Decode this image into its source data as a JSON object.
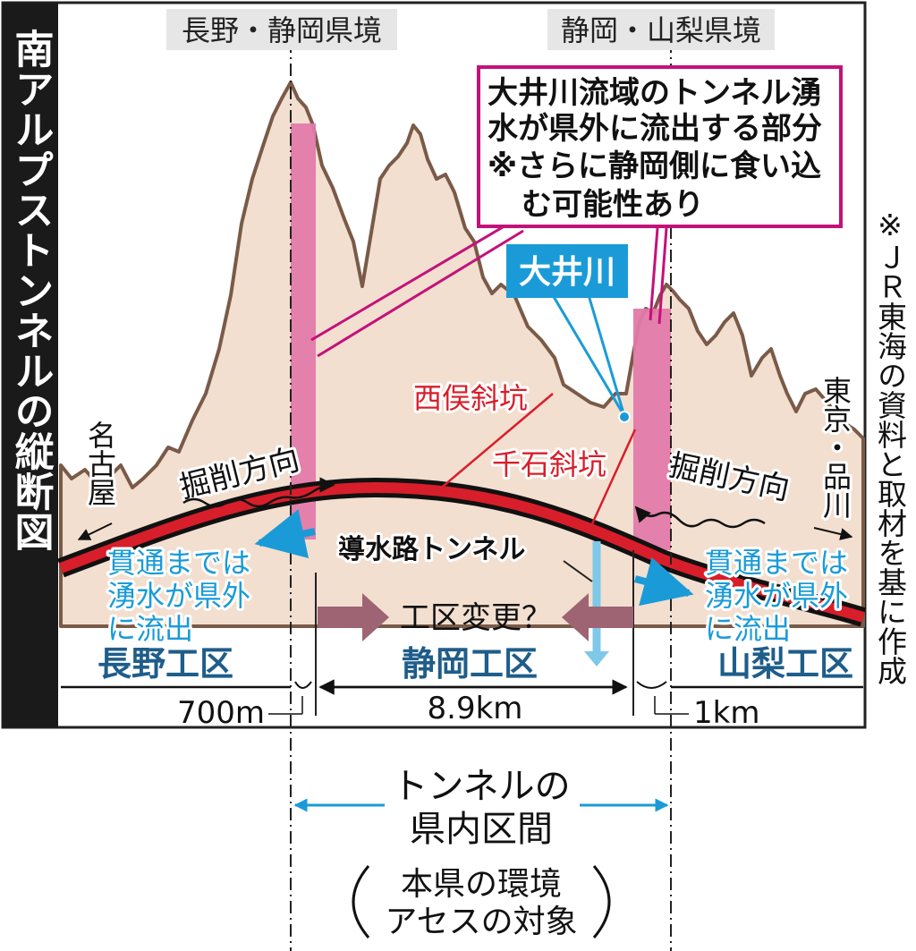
{
  "title": "南アルプストンネルの縦断図",
  "source_note": "※ＪＲ東海の資料と取材を基に作成",
  "border_labels": {
    "left": "長野・静岡県境",
    "right": "静岡・山梨県境"
  },
  "callout": {
    "line1": "大井川流域のトンネル湧",
    "line2": "水が県外に流出する部分",
    "line3": "※さらに静岡側に食い込",
    "line4": "む可能性あり"
  },
  "river_label": "大井川",
  "shafts": {
    "nishimata": "西俣斜坑",
    "senzoku": "千石斜坑"
  },
  "aqueduct_label": "導水路トンネル",
  "destinations": {
    "west": "名古屋",
    "east": "東京・品川"
  },
  "excavation_direction": "掘削方向",
  "outflow_note": {
    "line1": "貫通までは",
    "line2": "湧水が県外",
    "line3": "に流出"
  },
  "change_label": "工区変更？",
  "sections": {
    "nagano": "長野工区",
    "shizuoka": "静岡工区",
    "yamanashi": "山梨工区"
  },
  "distances": {
    "nagano": "700m",
    "shizuoka": "8.9km",
    "yamanashi": "1km"
  },
  "in_prefecture": {
    "line1": "トンネルの",
    "line2": "県内区間",
    "line3": "本県の環境",
    "line4": "アセスの対象"
  },
  "colors": {
    "mountain_fill": "#f2dfd0",
    "mountain_outline": "#7a5a48",
    "tunnel_red": "#d81e2a",
    "pink_zone": "#e27aa9",
    "callout_border": "#c4117a",
    "blue_text": "#1a9bd7",
    "section_blue": "#1f5d8a",
    "arrow_mauve": "#9e6473",
    "title_bg": "#1a1a1a"
  }
}
